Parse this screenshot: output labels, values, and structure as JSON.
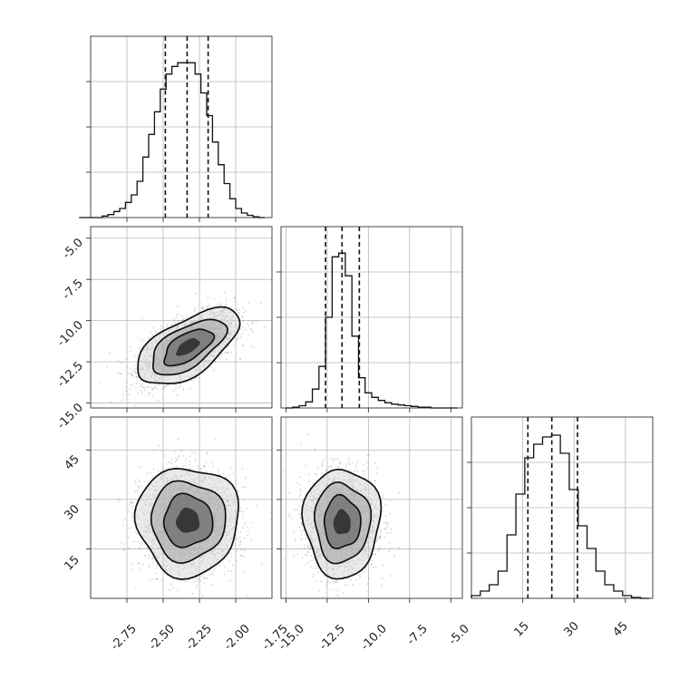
{
  "figure": {
    "type": "corner-plot"
  },
  "chart_data": [
    {
      "panel": "hist-param-1",
      "type": "bar",
      "x_bins": [
        -3.08,
        -3.04,
        -3.0,
        -2.96,
        -2.92,
        -2.88,
        -2.84,
        -2.8,
        -2.76,
        -2.72,
        -2.68,
        -2.64,
        -2.6,
        -2.56,
        -2.52,
        -2.48,
        -2.44,
        -2.4,
        -2.36,
        -2.32,
        -2.28,
        -2.24,
        -2.2,
        -2.16,
        -2.12,
        -2.08,
        -2.04,
        -2.0,
        -1.96,
        -1.92,
        -1.88,
        -1.84
      ],
      "counts": [
        0,
        0,
        0,
        0,
        2,
        4,
        8,
        12,
        20,
        30,
        48,
        80,
        110,
        140,
        170,
        190,
        200,
        205,
        205,
        205,
        190,
        165,
        135,
        100,
        70,
        45,
        25,
        12,
        6,
        3,
        1,
        0
      ],
      "quantiles": [
        -2.485,
        -2.335,
        -2.19
      ],
      "xlim": [
        -3.0,
        -1.75
      ],
      "ylim": [
        0,
        240
      ],
      "grid": true
    },
    {
      "panel": "scatter-param-2-vs-1",
      "type": "scatter",
      "x_ticks": [
        "-2.75",
        "-2.50",
        "-2.25",
        "-2.00",
        "-1.75"
      ],
      "x_tick_values": [
        -2.75,
        -2.5,
        -2.25,
        -2.0,
        -1.75
      ],
      "y_ticks": [
        "-5.0",
        "-7.5",
        "-10.0",
        "-12.5",
        "-15.0"
      ],
      "y_tick_values": [
        -5.0,
        -7.5,
        -10.0,
        -12.5,
        -15.0
      ],
      "center": [
        -2.33,
        -11.6
      ],
      "sigma": [
        0.16,
        1.05
      ],
      "correlation": 0.6,
      "points": 2500,
      "xlim": [
        -3.0,
        -1.75
      ],
      "ylim": [
        -15.3,
        -4.3
      ],
      "grid": true
    },
    {
      "panel": "hist-param-2",
      "type": "bar",
      "x_bins": [
        -15.0,
        -14.6,
        -14.2,
        -13.8,
        -13.4,
        -13.0,
        -12.6,
        -12.2,
        -11.8,
        -11.4,
        -11.0,
        -10.6,
        -10.2,
        -9.8,
        -9.4,
        -9.0,
        -8.6,
        -8.2,
        -7.8,
        -7.4,
        -7.0,
        -6.6,
        -6.2,
        -5.8,
        -5.4,
        -5.0
      ],
      "counts": [
        0,
        1,
        3,
        8,
        25,
        55,
        120,
        200,
        205,
        175,
        95,
        40,
        20,
        14,
        10,
        7,
        5,
        4,
        3,
        2,
        1,
        1,
        0,
        0,
        0,
        0
      ],
      "quantiles": [
        -12.6,
        -11.6,
        -10.55
      ],
      "xlim": [
        -15.3,
        -4.3
      ],
      "ylim": [
        0,
        240
      ],
      "grid": true
    },
    {
      "panel": "scatter-param-3-vs-1",
      "type": "scatter",
      "y_ticks": [
        "15",
        "30",
        "45"
      ],
      "y_tick_values": [
        15,
        30,
        45
      ],
      "center": [
        -2.33,
        23.5
      ],
      "sigma": [
        0.16,
        7.5
      ],
      "correlation": 0.0,
      "points": 2500,
      "xlim": [
        -3.0,
        -1.75
      ],
      "ylim": [
        0,
        55
      ],
      "grid": true
    },
    {
      "panel": "scatter-param-3-vs-2",
      "type": "scatter",
      "x_ticks": [
        "-15.0",
        "-12.5",
        "-10.0",
        "-7.5",
        "-5.0"
      ],
      "x_tick_values": [
        -15.0,
        -12.5,
        -10.0,
        -7.5,
        -5.0
      ],
      "center": [
        -11.6,
        23.0
      ],
      "sigma": [
        1.05,
        7.5
      ],
      "correlation": 0.0,
      "points": 2500,
      "xlim": [
        -15.3,
        -4.3
      ],
      "ylim": [
        0,
        55
      ],
      "grid": true
    },
    {
      "panel": "hist-param-3",
      "type": "bar",
      "x_ticks": [
        "15",
        "30",
        "45"
      ],
      "x_tick_values": [
        15,
        30,
        45
      ],
      "x_bins": [
        0,
        2.6,
        5.2,
        7.8,
        10.4,
        13.0,
        15.6,
        18.2,
        20.8,
        23.4,
        26.0,
        28.6,
        31.2,
        33.8,
        36.4,
        39.0,
        41.6,
        44.2,
        46.8,
        49.4
      ],
      "counts": [
        3,
        8,
        15,
        30,
        70,
        115,
        155,
        170,
        178,
        180,
        160,
        120,
        80,
        55,
        30,
        15,
        8,
        3,
        1,
        0
      ],
      "quantiles": [
        16.5,
        23.5,
        31.0
      ],
      "xlim": [
        0,
        53
      ],
      "ylim": [
        0,
        200
      ],
      "grid": true
    }
  ]
}
